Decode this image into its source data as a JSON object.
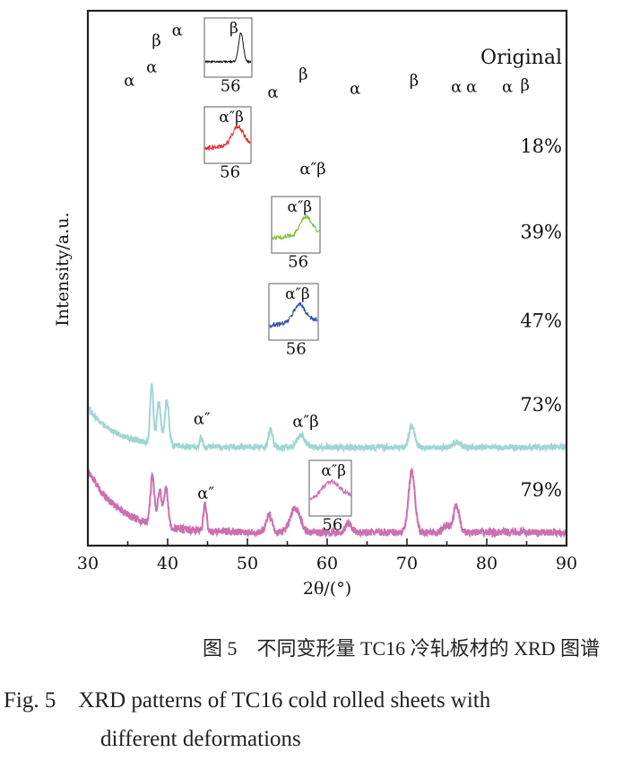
{
  "chart_data": {
    "type": "line",
    "title": "",
    "xlabel": "2θ/(°)",
    "ylabel": "Intensity/a.u.",
    "xlim": [
      30,
      90
    ],
    "ylim": [
      0,
      600
    ],
    "xticks": [
      "30",
      "40",
      "50",
      "60",
      "70",
      "80",
      "90"
    ],
    "grid": false,
    "series": [
      {
        "name": "Original",
        "color": "#111111",
        "offset": 503,
        "noise": 1.0,
        "bg": [
          0,
          0
        ],
        "peaks": [
          [
            35.2,
            12,
            0.15
          ],
          [
            38.4,
            25,
            0.15
          ],
          [
            39.3,
            55,
            0.15
          ],
          [
            40.4,
            92,
            0.15
          ],
          [
            53.1,
            10,
            0.2
          ],
          [
            57.0,
            8,
            0.2
          ],
          [
            63.5,
            3,
            0.2
          ],
          [
            70.9,
            6,
            0.25
          ],
          [
            76.6,
            7,
            0.2
          ],
          [
            77.9,
            5,
            0.2
          ],
          [
            82.4,
            2,
            0.2
          ],
          [
            84.6,
            3,
            0.2
          ]
        ],
        "labels": [
          {
            "text": "α",
            "x": 35.2,
            "y": 525
          },
          {
            "text": "α",
            "x": 38.0,
            "y": 540
          },
          {
            "text": "β",
            "x": 38.6,
            "y": 570
          },
          {
            "text": "α",
            "x": 41.2,
            "y": 582
          },
          {
            "text": "α",
            "x": 53.2,
            "y": 512
          },
          {
            "text": "β",
            "x": 57.0,
            "y": 532
          },
          {
            "text": "α",
            "x": 63.5,
            "y": 516
          },
          {
            "text": "β",
            "x": 70.9,
            "y": 525
          },
          {
            "text": "α",
            "x": 76.2,
            "y": 518
          },
          {
            "text": "α",
            "x": 78.1,
            "y": 518
          },
          {
            "text": "α",
            "x": 82.6,
            "y": 518
          },
          {
            "text": "β",
            "x": 84.8,
            "y": 520
          }
        ]
      },
      {
        "name": "18%",
        "color": "#e8262a",
        "offset": 403,
        "noise": 1.5,
        "bg": [
          0,
          0
        ],
        "peaks": [
          [
            35.2,
            12,
            0.2
          ],
          [
            38.4,
            18,
            0.2
          ],
          [
            39.3,
            32,
            0.2
          ],
          [
            40.4,
            80,
            0.2
          ],
          [
            53.1,
            8,
            0.25
          ],
          [
            57.0,
            9,
            0.4
          ],
          [
            63.5,
            3,
            0.3
          ],
          [
            70.9,
            9,
            0.4
          ],
          [
            76.6,
            9,
            0.3
          ],
          [
            77.9,
            7,
            0.3
          ]
        ],
        "labels": [
          {
            "text": "α″β",
            "x": 58.2,
            "y": 425
          }
        ]
      },
      {
        "name": "39%",
        "color": "#7dbd3a",
        "offset": 306,
        "noise": 1.5,
        "bg": [
          0,
          0
        ],
        "peaks": [
          [
            35.1,
            12,
            0.2
          ],
          [
            38.3,
            30,
            0.2
          ],
          [
            39.2,
            50,
            0.2
          ],
          [
            40.3,
            82,
            0.2
          ],
          [
            53.0,
            6,
            0.25
          ],
          [
            57.0,
            4,
            0.4
          ],
          [
            63.3,
            3,
            0.3
          ],
          [
            70.8,
            7,
            0.35
          ],
          [
            76.5,
            8,
            0.3
          ],
          [
            77.7,
            5,
            0.3
          ]
        ],
        "labels": []
      },
      {
        "name": "47%",
        "color": "#2a4fa8",
        "offset": 206,
        "noise": 1.8,
        "bg": [
          0,
          0
        ],
        "peaks": [
          [
            34.8,
            10,
            0.2
          ],
          [
            38.0,
            28,
            0.2
          ],
          [
            38.9,
            40,
            0.25
          ],
          [
            40.0,
            78,
            0.25
          ],
          [
            52.8,
            6,
            0.25
          ],
          [
            56.5,
            6,
            0.5
          ],
          [
            63.0,
            5,
            0.35
          ],
          [
            70.6,
            9,
            0.4
          ],
          [
            76.3,
            10,
            0.3
          ],
          [
            77.4,
            8,
            0.3
          ]
        ],
        "labels": []
      },
      {
        "name": "73%",
        "color": "#9fd6d3",
        "offset": 111,
        "noise": 3.0,
        "bg": [
          45,
          3.5
        ],
        "peaks": [
          [
            38.0,
            68,
            0.2
          ],
          [
            38.9,
            48,
            0.25
          ],
          [
            39.9,
            52,
            0.25
          ],
          [
            44.2,
            12,
            0.15
          ],
          [
            52.9,
            20,
            0.25
          ],
          [
            56.7,
            14,
            0.5
          ],
          [
            70.6,
            25,
            0.35
          ],
          [
            76.2,
            6,
            0.4
          ]
        ],
        "labels": [
          {
            "text": "α″",
            "x": 44.3,
            "y": 143
          },
          {
            "text": "α″β",
            "x": 57.3,
            "y": 140
          }
        ]
      },
      {
        "name": "79%",
        "color": "#cc6fb0",
        "offset": 15,
        "noise": 4.0,
        "bg": [
          70,
          4.0
        ],
        "peaks": [
          [
            38.1,
            55,
            0.25
          ],
          [
            39.0,
            40,
            0.25
          ],
          [
            39.8,
            45,
            0.25
          ],
          [
            44.7,
            30,
            0.2
          ],
          [
            52.7,
            20,
            0.35
          ],
          [
            56.0,
            28,
            0.6
          ],
          [
            62.7,
            10,
            0.4
          ],
          [
            70.6,
            68,
            0.4
          ],
          [
            76.2,
            30,
            0.35
          ],
          [
            75.0,
            8,
            0.4
          ]
        ],
        "labels": [
          {
            "text": "α″",
            "x": 44.8,
            "y": 59
          }
        ]
      }
    ],
    "insets": [
      {
        "series": "Original",
        "label": "β",
        "tick": "56"
      },
      {
        "series": "18%",
        "label": "α″β",
        "tick": "56"
      },
      {
        "series": "39%",
        "label": "α″β",
        "tick": "56"
      },
      {
        "series": "47%",
        "label": "α″β",
        "tick": "56"
      },
      {
        "series": "79%",
        "label": "α″β",
        "tick": "56"
      }
    ]
  },
  "caption": {
    "cn": "图 5　不同变形量 TC16 冷轧板材的 XRD 图谱",
    "en_line1": "Fig. 5　XRD patterns of TC16 cold rolled sheets with",
    "en_line2": "different deformations"
  }
}
